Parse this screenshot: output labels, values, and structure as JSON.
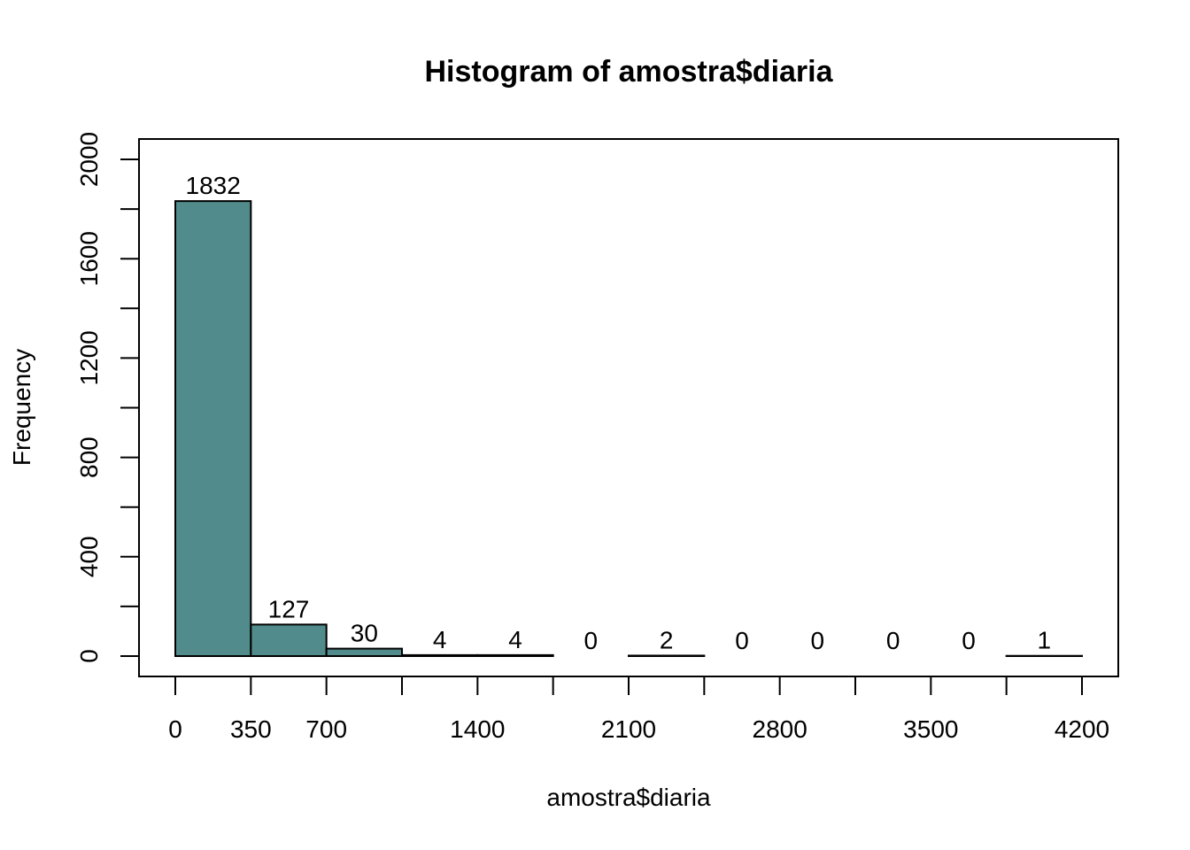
{
  "chart_data": {
    "type": "bar",
    "title": "Histogram of amostra$diaria",
    "xlabel": "amostra$diaria",
    "ylabel": "Frequency",
    "bins": [
      [
        0,
        350
      ],
      [
        350,
        700
      ],
      [
        700,
        1050
      ],
      [
        1050,
        1400
      ],
      [
        1400,
        1750
      ],
      [
        1750,
        2100
      ],
      [
        2100,
        2450
      ],
      [
        2450,
        2800
      ],
      [
        2800,
        3150
      ],
      [
        3150,
        3500
      ],
      [
        3500,
        3850
      ],
      [
        3850,
        4200
      ]
    ],
    "values": [
      1832,
      127,
      30,
      4,
      4,
      0,
      2,
      0,
      0,
      0,
      0,
      1
    ],
    "data_labels": [
      "1832",
      "127",
      "30",
      "4",
      "4",
      "0",
      "2",
      "0",
      "0",
      "0",
      "0",
      "1"
    ],
    "xlim": [
      0,
      4200
    ],
    "ylim": [
      0,
      2000
    ],
    "x_ticks": [
      0,
      350,
      700,
      1050,
      1400,
      1750,
      2100,
      2450,
      2800,
      3150,
      3500,
      3850,
      4200
    ],
    "x_tick_labels": [
      "0",
      "350",
      "700",
      "1400",
      "2100",
      "2800",
      "3500",
      "4200"
    ],
    "y_ticks": [
      0,
      200,
      400,
      600,
      800,
      1000,
      1200,
      1400,
      1600,
      1800,
      2000
    ],
    "y_tick_labels": [
      "0",
      "400",
      "800",
      "1200",
      "1600",
      "2000"
    ],
    "bar_color": "#528b8b",
    "grid": false,
    "legend": "none"
  }
}
